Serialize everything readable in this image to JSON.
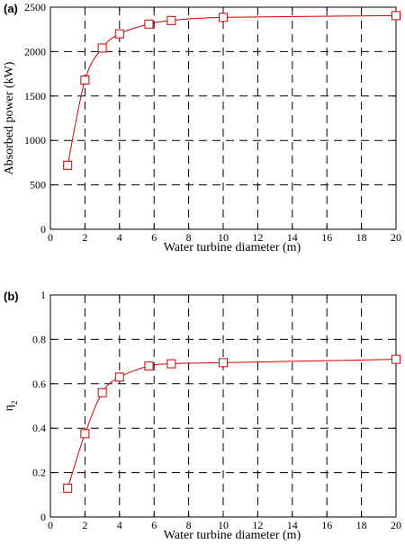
{
  "chart_data": [
    {
      "type": "line",
      "panel_label": "(a)",
      "xlabel": "Water turbine diameter (m)",
      "ylabel": "Absorbed power (kW)",
      "ylabel_sub": "",
      "xlim": [
        0,
        20
      ],
      "ylim": [
        0,
        2500
      ],
      "xticks": [
        0,
        2,
        4,
        6,
        8,
        10,
        12,
        14,
        16,
        18,
        20
      ],
      "yticks": [
        0,
        500,
        1000,
        1500,
        2000,
        2500
      ],
      "grid": true,
      "series_color": "#cc0000",
      "x": [
        1,
        2,
        3,
        4,
        5.7,
        7,
        10,
        20
      ],
      "values": [
        720,
        1680,
        2040,
        2200,
        2310,
        2350,
        2385,
        2405
      ]
    },
    {
      "type": "line",
      "panel_label": "(b)",
      "xlabel": "Water turbine diameter (m)",
      "ylabel": "η",
      "ylabel_sub": "2",
      "xlim": [
        0,
        20
      ],
      "ylim": [
        0,
        1
      ],
      "xticks": [
        0,
        2,
        4,
        6,
        8,
        10,
        12,
        14,
        16,
        18,
        20
      ],
      "yticks": [
        0,
        0.2,
        0.4,
        0.6,
        0.8,
        1
      ],
      "grid": true,
      "series_color": "#cc0000",
      "x": [
        1,
        2,
        3,
        4,
        5.7,
        7,
        10,
        20
      ],
      "values": [
        0.13,
        0.375,
        0.56,
        0.63,
        0.68,
        0.69,
        0.695,
        0.71
      ]
    }
  ]
}
